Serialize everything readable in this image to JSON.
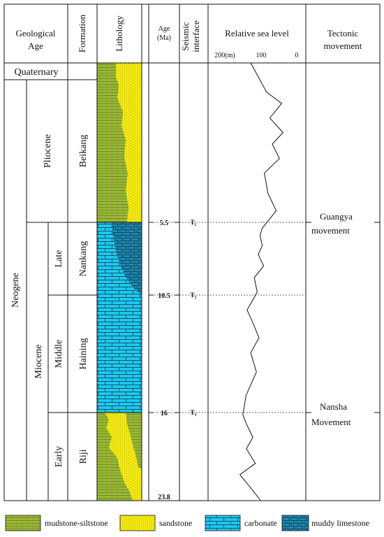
{
  "headers": {
    "geological_age": [
      "Geological",
      "Age"
    ],
    "formation": "Formation",
    "lithology": "Lithology",
    "age": [
      "Age",
      "(Ma)"
    ],
    "seismic": [
      "Seismic",
      "interface"
    ],
    "sea_level": "Relative sea level",
    "tectonic": [
      "Tectonic",
      "movement"
    ]
  },
  "sea_level_axis": {
    "ticks": [
      "200(m)",
      "100",
      "0"
    ],
    "max": 200,
    "min": 0
  },
  "units": {
    "quaternary": "Quaternary",
    "neogene": "Neogene",
    "pliocene": "Pliocene",
    "miocene": "Miocene",
    "late": "Late",
    "middle": "Middle",
    "early": "Early"
  },
  "formations": [
    "Beikang",
    "Nankang",
    "Haining",
    "Riji"
  ],
  "ages": [
    "5.5",
    "10.5",
    "16",
    "23.8"
  ],
  "seismic_interfaces": [
    "T₁",
    "T₂",
    "T₃"
  ],
  "tectonic_movements": [
    {
      "lines": [
        "Guangya",
        "movement"
      ]
    },
    {
      "lines": [
        "Nansha",
        "Movement"
      ]
    }
  ],
  "legend": [
    "mudstone-siltstone",
    "sandstone",
    "carbonate",
    "muddy limestone"
  ],
  "colors": {
    "mudstone": "#a9c83a",
    "sandstone": "#f3ea10",
    "carbonate": "#1ec8f0",
    "muddy_limestone": "#1b8ab5",
    "line": "#111111"
  },
  "chart_data": {
    "type": "line",
    "title": "Relative sea level",
    "xlabel": "",
    "ylabel": "",
    "x_axis": "relative sea level (m)",
    "xlim": [
      200,
      0
    ],
    "ylim": [
      0,
      23.8
    ],
    "series": [
      {
        "values": [
          [
            128,
            0
          ],
          [
            84,
            1.0
          ],
          [
            42,
            1.4
          ],
          [
            75,
            1.9
          ],
          [
            38,
            2.4
          ],
          [
            68,
            2.8
          ],
          [
            48,
            3.3
          ],
          [
            90,
            3.8
          ],
          [
            80,
            4.5
          ],
          [
            57,
            5.1
          ],
          [
            96,
            5.9
          ],
          [
            102,
            6.4
          ],
          [
            96,
            7.1
          ],
          [
            107,
            7.7
          ],
          [
            92,
            8.5
          ],
          [
            118,
            9.3
          ],
          [
            110,
            10.3
          ],
          [
            138,
            11.2
          ],
          [
            122,
            11.8
          ],
          [
            105,
            12.5
          ],
          [
            128,
            13.2
          ],
          [
            112,
            14.1
          ],
          [
            141,
            15.2
          ],
          [
            150,
            16.2
          ],
          [
            140,
            17.0
          ],
          [
            122,
            18.2
          ],
          [
            140,
            19.2
          ],
          [
            115,
            20.5
          ],
          [
            158,
            21.5
          ],
          [
            130,
            22.6
          ],
          [
            100,
            23.8
          ]
        ]
      }
    ]
  }
}
